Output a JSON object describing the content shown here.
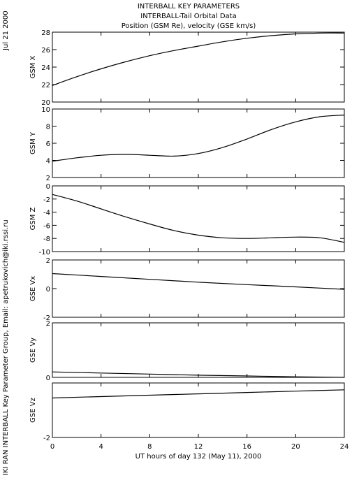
{
  "header": {
    "title_line1": "INTERBALL KEY PARAMETERS",
    "title_line2": "INTERBALL-Tail Orbital Data",
    "title_line3": "Position (GSM Re), velocity (GSE km/s)"
  },
  "side": {
    "date_label": "Jul 21 2000",
    "credit": "IKI RAN INTERBALL Key Parameter Group, Email: apetrukovich@iki.rssi.ru"
  },
  "x_axis": {
    "label": "UT hours of day 132 (May 11), 2000",
    "range": [
      0,
      24
    ],
    "ticks": [
      "0",
      "4",
      "8",
      "12",
      "16",
      "20",
      "24"
    ]
  },
  "chart_data": [
    {
      "type": "line",
      "ylabel": "GSM X",
      "ylim": [
        20,
        28
      ],
      "yticks": [
        20,
        22,
        24,
        26,
        28
      ],
      "x": [
        0,
        2,
        4,
        6,
        8,
        10,
        12,
        14,
        16,
        18,
        20,
        22,
        24
      ],
      "y": [
        21.9,
        22.9,
        23.8,
        24.6,
        25.3,
        25.9,
        26.4,
        26.9,
        27.3,
        27.6,
        27.8,
        27.9,
        27.9
      ]
    },
    {
      "type": "line",
      "ylabel": "GSM Y",
      "ylim": [
        2,
        10
      ],
      "yticks": [
        2,
        4,
        6,
        8,
        10
      ],
      "x": [
        0,
        2,
        4,
        6,
        8,
        10,
        12,
        14,
        16,
        18,
        20,
        22,
        24
      ],
      "y": [
        3.9,
        4.3,
        4.6,
        4.7,
        4.6,
        4.5,
        4.8,
        5.5,
        6.5,
        7.6,
        8.5,
        9.1,
        9.3
      ]
    },
    {
      "type": "line",
      "ylabel": "GSM Z",
      "ylim": [
        -10,
        0
      ],
      "yticks": [
        -10,
        -8,
        -6,
        -4,
        -2,
        0
      ],
      "x": [
        0,
        2,
        4,
        6,
        8,
        10,
        12,
        14,
        16,
        18,
        20,
        22,
        24
      ],
      "y": [
        -1.3,
        -2.3,
        -3.5,
        -4.7,
        -5.8,
        -6.8,
        -7.5,
        -7.9,
        -8.0,
        -7.9,
        -7.8,
        -7.9,
        -8.6
      ]
    },
    {
      "type": "line",
      "ylabel": "GSE Vx",
      "ylim": [
        -2,
        2
      ],
      "yticks": [
        -2,
        0,
        2
      ],
      "x": [
        0,
        4,
        8,
        12,
        16,
        20,
        24
      ],
      "y": [
        1.05,
        0.85,
        0.65,
        0.45,
        0.28,
        0.12,
        -0.05
      ]
    },
    {
      "type": "line",
      "ylabel": "GSE Vy",
      "ylim": [
        0,
        2
      ],
      "yticks": [
        0,
        2
      ],
      "x": [
        0,
        4,
        8,
        12,
        16,
        20,
        24
      ],
      "y": [
        0.2,
        0.16,
        0.12,
        0.08,
        0.05,
        0.02,
        0.0
      ]
    },
    {
      "type": "line",
      "ylabel": "GSE Vz",
      "ylim": [
        -2,
        0
      ],
      "yticks": [
        -2
      ],
      "x": [
        0,
        4,
        8,
        12,
        16,
        20,
        24
      ],
      "y": [
        -0.55,
        -0.5,
        -0.45,
        -0.4,
        -0.35,
        -0.3,
        -0.25
      ]
    }
  ]
}
